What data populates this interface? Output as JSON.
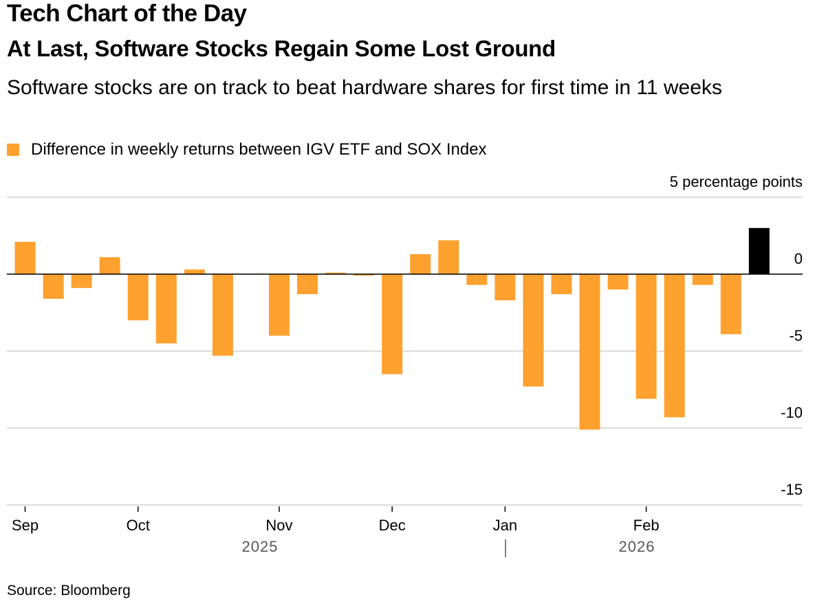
{
  "chart_data": {
    "type": "bar",
    "title": "Tech Chart of the Day",
    "subtitle": "At Last, Software Stocks Regain Some Lost Ground",
    "description": "Software stocks are on track to beat hardware shares for first time in 11 weeks",
    "categories": [
      "Sep",
      null,
      null,
      null,
      "Oct",
      null,
      null,
      null,
      null,
      "Nov",
      null,
      null,
      null,
      "Dec",
      null,
      null,
      null,
      "Jan",
      null,
      null,
      null,
      null,
      "Feb",
      null,
      null,
      null,
      null
    ],
    "series": [
      {
        "name": "Difference in weekly returns between IGV ETF and SOX Index",
        "color": "#ffa12e",
        "values": [
          2.1,
          -1.6,
          -0.9,
          1.1,
          -3.0,
          -4.5,
          0.3,
          -5.3,
          0.0,
          -4.0,
          -1.3,
          0.1,
          -0.1,
          -6.5,
          1.3,
          2.2,
          -0.7,
          -1.7,
          -7.3,
          -1.3,
          -10.1,
          -1.0,
          -8.1,
          -9.3,
          -0.7,
          -3.9,
          3.0
        ],
        "colors": [
          "#ffa12e",
          "#ffa12e",
          "#ffa12e",
          "#ffa12e",
          "#ffa12e",
          "#ffa12e",
          "#ffa12e",
          "#ffa12e",
          "#ffa12e",
          "#ffa12e",
          "#ffa12e",
          "#ffa12e",
          "#ffa12e",
          "#ffa12e",
          "#ffa12e",
          "#ffa12e",
          "#ffa12e",
          "#ffa12e",
          "#ffa12e",
          "#ffa12e",
          "#ffa12e",
          "#ffa12e",
          "#ffa12e",
          "#ffa12e",
          "#ffa12e",
          "#ffa12e",
          "#000000"
        ]
      }
    ],
    "ylim": [
      -15,
      5
    ],
    "yticks": [
      {
        "value": 5,
        "label": "5 percentage points"
      },
      0,
      -5,
      -10,
      -15
    ],
    "grid": true,
    "years": [
      "2025",
      "2026"
    ],
    "source": "Source: Bloomberg"
  }
}
